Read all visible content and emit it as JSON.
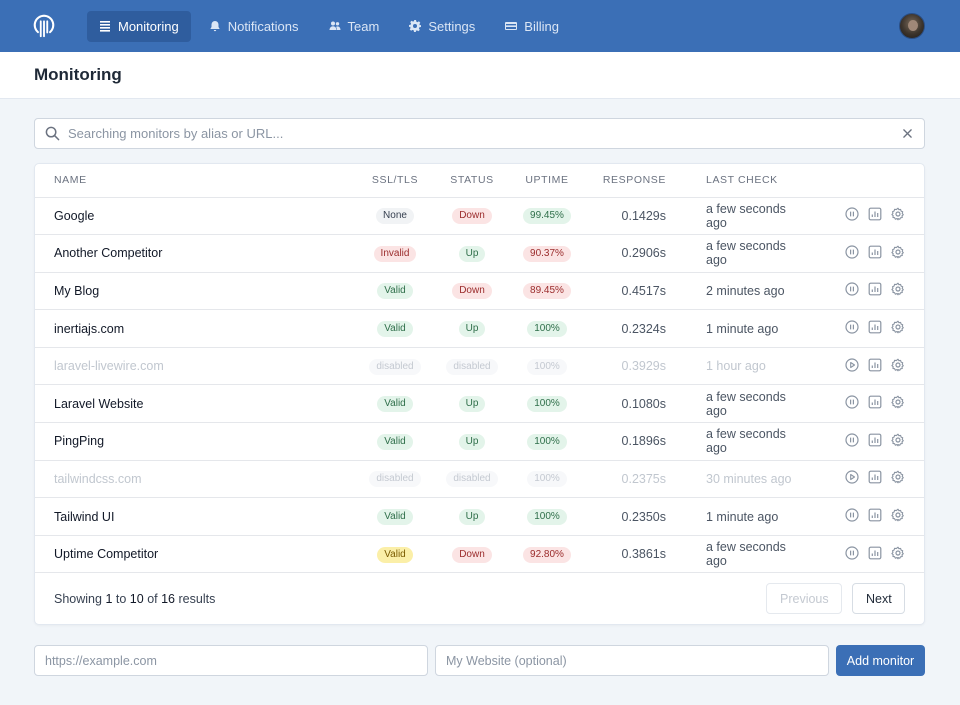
{
  "colors": {
    "brand": "#3b6fb6",
    "brand_dark": "#2f5d9e",
    "up": "#e3f4ea",
    "down": "#fbe4e4",
    "warn": "#fbefa8"
  },
  "nav": {
    "logo_icon": "uptime-logo-icon",
    "items": [
      {
        "label": "Monitoring",
        "icon": "list-icon",
        "active": true
      },
      {
        "label": "Notifications",
        "icon": "bell-icon",
        "active": false
      },
      {
        "label": "Team",
        "icon": "users-icon",
        "active": false
      },
      {
        "label": "Settings",
        "icon": "gear-icon",
        "active": false
      },
      {
        "label": "Billing",
        "icon": "credit-card-icon",
        "active": false
      }
    ]
  },
  "page": {
    "title": "Monitoring"
  },
  "search": {
    "placeholder": "Searching monitors by alias or URL...",
    "value": ""
  },
  "table": {
    "headers": {
      "name": "NAME",
      "ssl": "SSL/TLS",
      "status": "STATUS",
      "uptime": "UPTIME",
      "response": "RESPONSE",
      "last_check": "LAST CHECK"
    },
    "rows": [
      {
        "name": "Google",
        "ssl": "None",
        "ssl_kind": "gray",
        "status": "Down",
        "status_kind": "red",
        "uptime": "99.45%",
        "uptime_kind": "green",
        "response": "0.1429s",
        "last_check": "a few seconds ago",
        "disabled": false
      },
      {
        "name": "Another Competitor",
        "ssl": "Invalid",
        "ssl_kind": "red",
        "status": "Up",
        "status_kind": "green",
        "uptime": "90.37%",
        "uptime_kind": "red",
        "response": "0.2906s",
        "last_check": "a few seconds ago",
        "disabled": false
      },
      {
        "name": "My Blog",
        "ssl": "Valid",
        "ssl_kind": "green",
        "status": "Down",
        "status_kind": "red",
        "uptime": "89.45%",
        "uptime_kind": "red",
        "response": "0.4517s",
        "last_check": "2 minutes ago",
        "disabled": false
      },
      {
        "name": "inertiajs.com",
        "ssl": "Valid",
        "ssl_kind": "green",
        "status": "Up",
        "status_kind": "green",
        "uptime": "100%",
        "uptime_kind": "green",
        "response": "0.2324s",
        "last_check": "1 minute ago",
        "disabled": false
      },
      {
        "name": "laravel-livewire.com",
        "ssl": "disabled",
        "ssl_kind": "muted",
        "status": "disabled",
        "status_kind": "muted",
        "uptime": "100%",
        "uptime_kind": "muted",
        "response": "0.3929s",
        "last_check": "1 hour ago",
        "disabled": true
      },
      {
        "name": "Laravel Website",
        "ssl": "Valid",
        "ssl_kind": "green",
        "status": "Up",
        "status_kind": "green",
        "uptime": "100%",
        "uptime_kind": "green",
        "response": "0.1080s",
        "last_check": "a few seconds ago",
        "disabled": false
      },
      {
        "name": "PingPing",
        "ssl": "Valid",
        "ssl_kind": "green",
        "status": "Up",
        "status_kind": "green",
        "uptime": "100%",
        "uptime_kind": "green",
        "response": "0.1896s",
        "last_check": "a few seconds ago",
        "disabled": false
      },
      {
        "name": "tailwindcss.com",
        "ssl": "disabled",
        "ssl_kind": "muted",
        "status": "disabled",
        "status_kind": "muted",
        "uptime": "100%",
        "uptime_kind": "muted",
        "response": "0.2375s",
        "last_check": "30 minutes ago",
        "disabled": true
      },
      {
        "name": "Tailwind UI",
        "ssl": "Valid",
        "ssl_kind": "green",
        "status": "Up",
        "status_kind": "green",
        "uptime": "100%",
        "uptime_kind": "green",
        "response": "0.2350s",
        "last_check": "1 minute ago",
        "disabled": false
      },
      {
        "name": "Uptime Competitor",
        "ssl": "Valid",
        "ssl_kind": "yellow",
        "status": "Down",
        "status_kind": "red",
        "uptime": "92.80%",
        "uptime_kind": "red",
        "response": "0.3861s",
        "last_check": "a few seconds ago",
        "disabled": false
      }
    ]
  },
  "pagination": {
    "showing": "Showing",
    "from": "1",
    "to_word": "to",
    "to": "10",
    "of_word": "of",
    "total": "16",
    "results": "results",
    "previous": "Previous",
    "next": "Next"
  },
  "add_monitor": {
    "url_placeholder": "https://example.com",
    "alias_placeholder": "My Website (optional)",
    "button": "Add monitor"
  }
}
